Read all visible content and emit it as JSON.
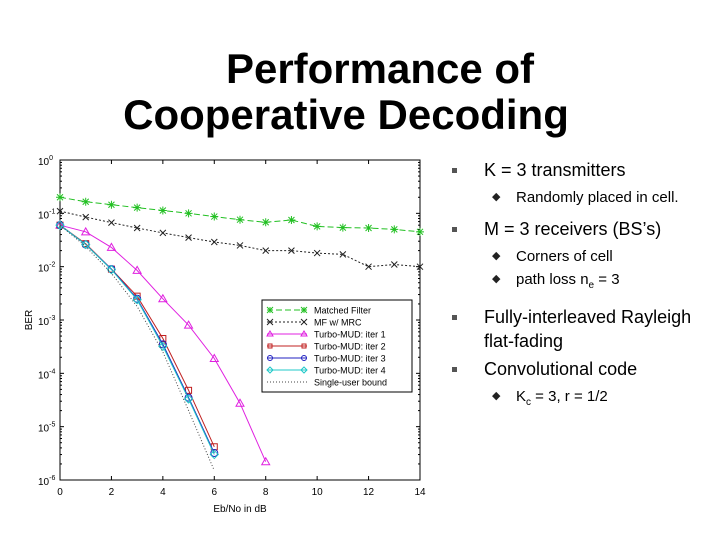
{
  "slide": {
    "title_line1": "Performance of",
    "title_line2": "Cooperative Decoding"
  },
  "bullets": [
    {
      "text": "K = 3 transmitters",
      "sub": [
        {
          "text": "Randomly placed in cell."
        }
      ]
    },
    {
      "text": "M = 3 receivers (BS’s)",
      "sub": [
        {
          "text": "Corners of cell"
        },
        {
          "text_before": "path loss n",
          "subscript": "e",
          "text_after": " = 3"
        }
      ]
    },
    {
      "text": "Fully-interleaved Rayleigh flat-fading",
      "sub": []
    },
    {
      "text": "Convolutional code",
      "sub": [
        {
          "text_before": "K",
          "subscript": "c",
          "text_after": " = 3, r = 1/2"
        }
      ]
    }
  ],
  "chart_data": {
    "type": "line",
    "xlabel": "Eb/No in dB",
    "ylabel": "BER",
    "xlim": [
      0,
      14
    ],
    "ylim_log10": [
      -6,
      0
    ],
    "yscale": "log",
    "xticks": [
      "0",
      "2",
      "4",
      "6",
      "8",
      "10",
      "12",
      "14"
    ],
    "yticks": [
      {
        "base": "10",
        "exp": "0"
      },
      {
        "base": "10",
        "exp": "-1"
      },
      {
        "base": "10",
        "exp": "-2"
      },
      {
        "base": "10",
        "exp": "-3"
      },
      {
        "base": "10",
        "exp": "-4"
      },
      {
        "base": "10",
        "exp": "-5"
      },
      {
        "base": "10",
        "exp": "-6"
      }
    ],
    "legend_position": "lower-right",
    "series": [
      {
        "name": "Matched Filter",
        "color": "#22c022",
        "marker": "star",
        "dash": "6,3",
        "x": [
          0,
          1,
          2,
          3,
          4,
          5,
          6,
          7,
          8,
          9,
          10,
          11,
          12,
          13,
          14
        ],
        "y": [
          0.2,
          0.165,
          0.145,
          0.128,
          0.113,
          0.1,
          0.087,
          0.076,
          0.068,
          0.075,
          0.057,
          0.054,
          0.053,
          0.05,
          0.045
        ]
      },
      {
        "name": "MF w/ MRC",
        "color": "#222222",
        "marker": "x",
        "dash": "2,2",
        "x": [
          0,
          1,
          2,
          3,
          4,
          5,
          6,
          7,
          8,
          9,
          10,
          11,
          12,
          13,
          14
        ],
        "y": [
          0.11,
          0.085,
          0.067,
          0.053,
          0.043,
          0.035,
          0.029,
          0.025,
          0.02,
          0.02,
          0.018,
          0.017,
          0.01,
          0.011,
          0.01
        ]
      },
      {
        "name": "Turbo-MUD: iter 1",
        "color": "#e020e0",
        "marker": "triangle",
        "dash": "",
        "x": [
          0,
          1,
          2,
          3,
          4,
          5,
          6,
          7,
          8
        ],
        "y": [
          0.06,
          0.045,
          0.023,
          0.0085,
          0.0025,
          0.0008,
          0.00019,
          2.75e-05,
          2.2e-06
        ]
      },
      {
        "name": "Turbo-MUD: iter 2",
        "color": "#c02020",
        "marker": "square",
        "dash": "",
        "x": [
          0,
          1,
          2,
          3,
          4,
          5,
          6
        ],
        "y": [
          0.06,
          0.027,
          0.009,
          0.0028,
          0.00045,
          4.8e-05,
          4.2e-06
        ]
      },
      {
        "name": "Turbo-MUD: iter 3",
        "color": "#2020c0",
        "marker": "circle",
        "dash": "",
        "x": [
          0,
          1,
          2,
          3,
          4,
          5,
          6
        ],
        "y": [
          0.06,
          0.026,
          0.009,
          0.0025,
          0.00035,
          3.5e-05,
          3.2e-06
        ]
      },
      {
        "name": "Turbo-MUD: iter 4",
        "color": "#20c8c8",
        "marker": "diamond",
        "dash": "",
        "x": [
          0,
          1,
          2,
          3,
          4,
          5,
          6
        ],
        "y": [
          0.06,
          0.026,
          0.0088,
          0.0024,
          0.00032,
          3.3e-05,
          3e-06
        ]
      },
      {
        "name": "Single-user bound",
        "color": "#444444",
        "marker": "none",
        "dash": "1,2",
        "x": [
          0,
          1,
          2,
          3,
          4,
          5,
          6
        ],
        "y": [
          0.06,
          0.024,
          0.0075,
          0.0018,
          0.00025,
          2e-05,
          1.5e-06
        ]
      }
    ]
  }
}
